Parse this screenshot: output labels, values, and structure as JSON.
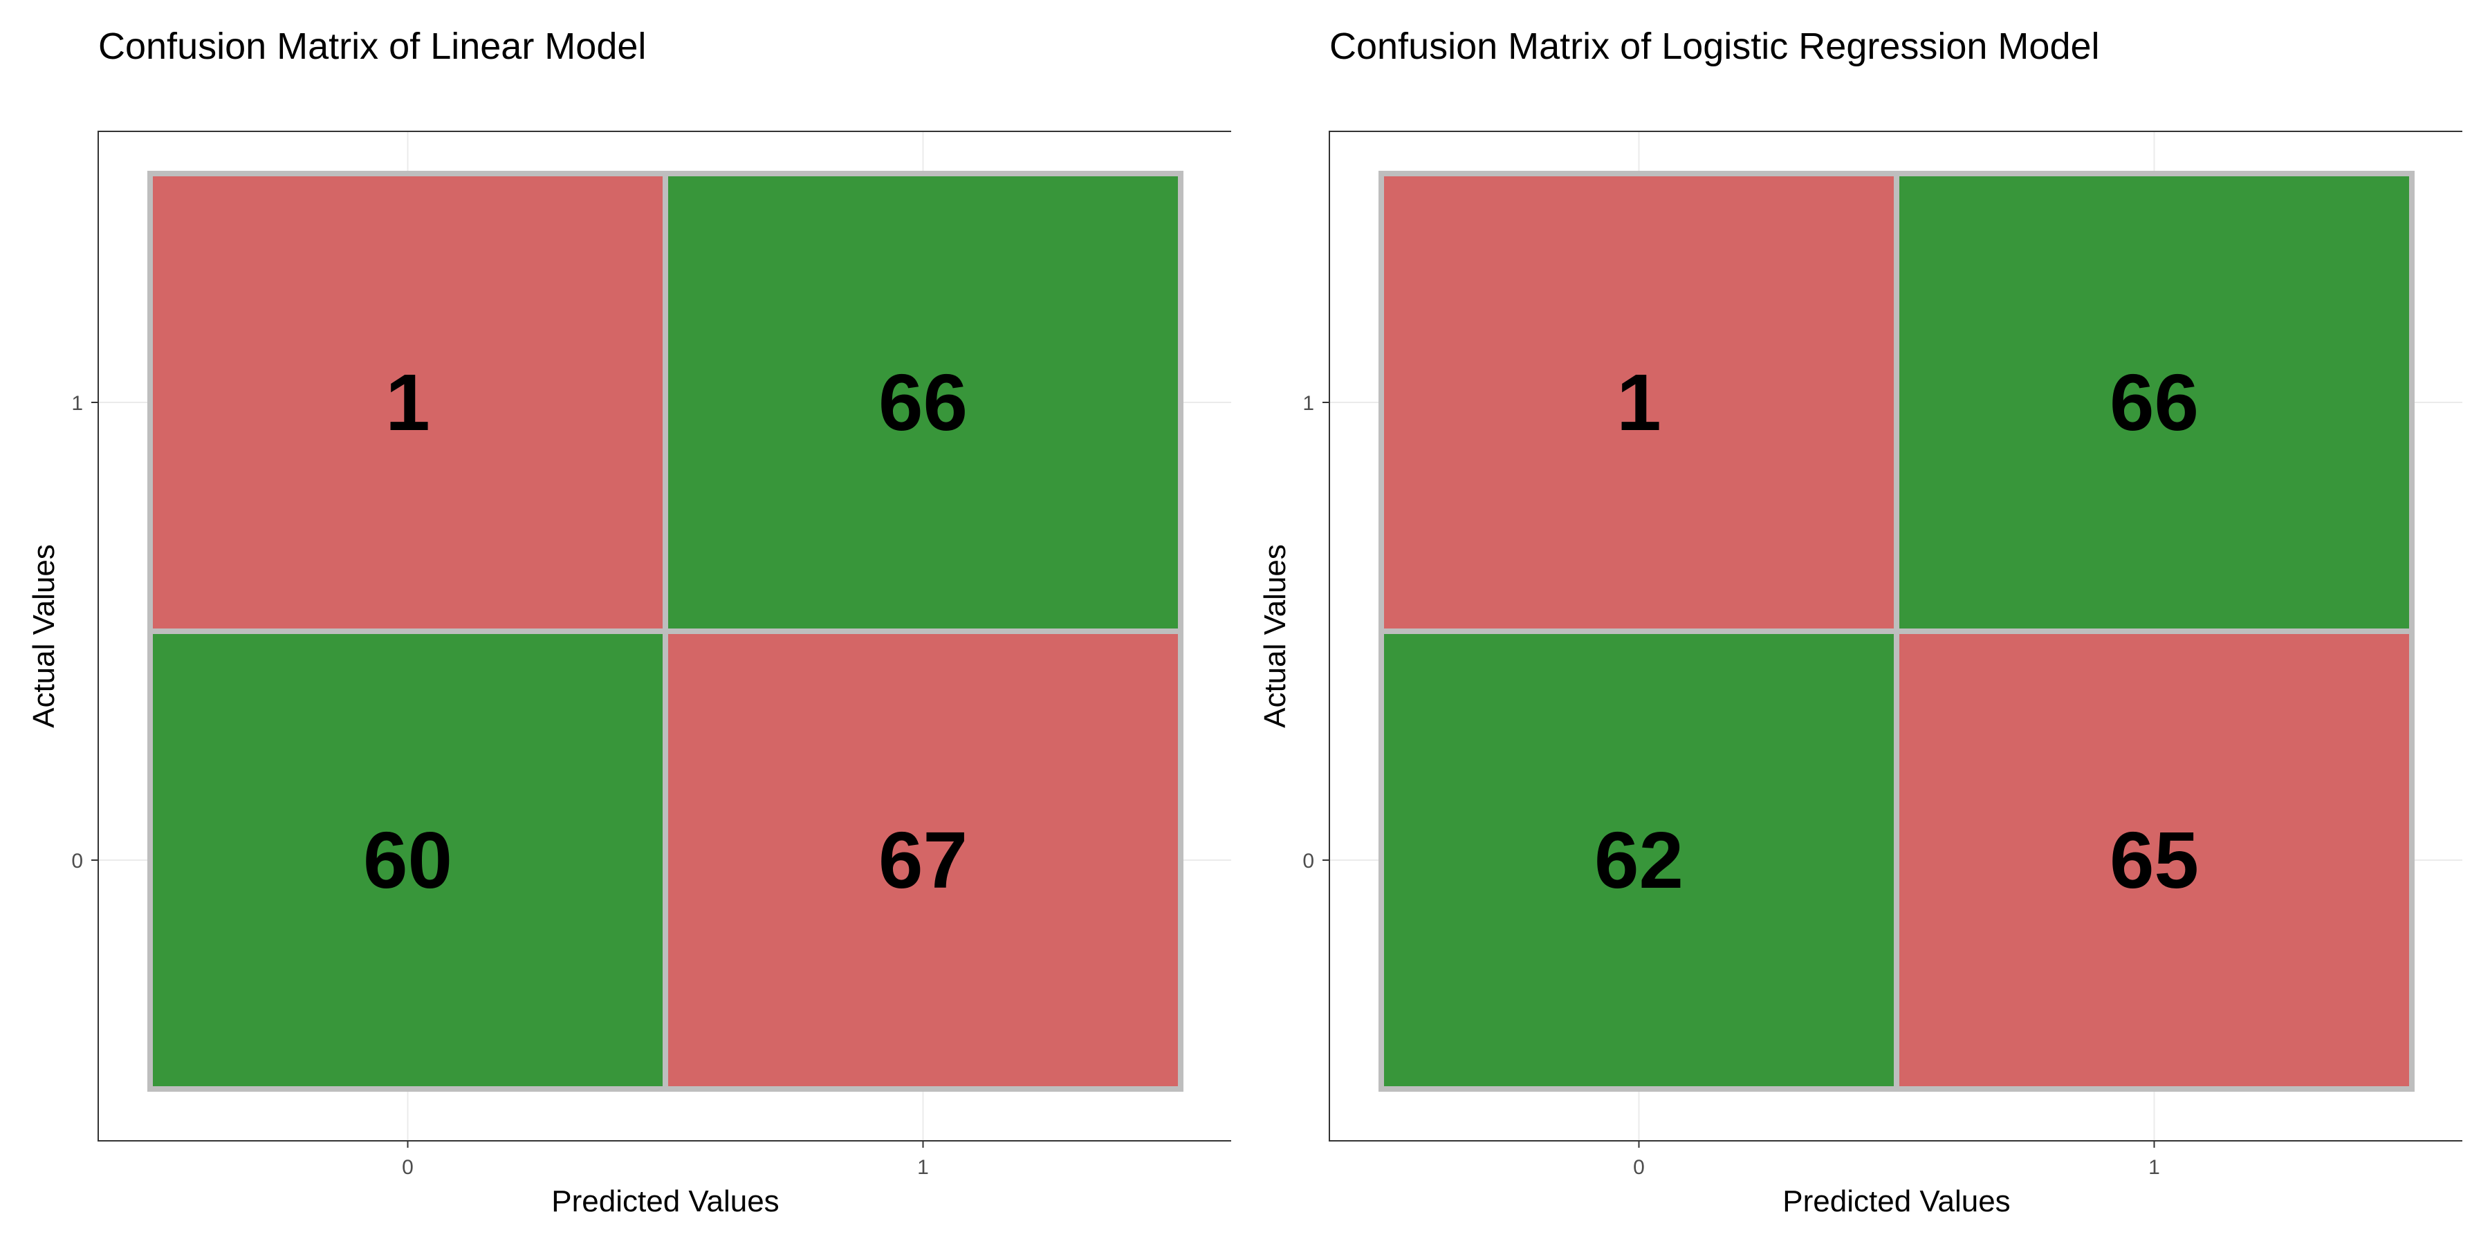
{
  "chart_data": [
    {
      "type": "heatmap",
      "title": "Confusion Matrix of Linear Model",
      "xlabel": "Predicted Values",
      "ylabel": "Actual Values",
      "x_categories": [
        "0",
        "1"
      ],
      "y_categories": [
        "0",
        "1"
      ],
      "cells": [
        {
          "predicted": "0",
          "actual": "1",
          "value": 1,
          "color": "#d46666"
        },
        {
          "predicted": "1",
          "actual": "1",
          "value": 66,
          "color": "#38963a"
        },
        {
          "predicted": "0",
          "actual": "0",
          "value": 60,
          "color": "#38963a"
        },
        {
          "predicted": "1",
          "actual": "0",
          "value": 67,
          "color": "#d46666"
        }
      ]
    },
    {
      "type": "heatmap",
      "title": "Confusion Matrix of Logistic Regression Model",
      "xlabel": "Predicted Values",
      "ylabel": "Actual Values",
      "x_categories": [
        "0",
        "1"
      ],
      "y_categories": [
        "0",
        "1"
      ],
      "cells": [
        {
          "predicted": "0",
          "actual": "1",
          "value": 1,
          "color": "#d46666"
        },
        {
          "predicted": "1",
          "actual": "1",
          "value": 66,
          "color": "#38963a"
        },
        {
          "predicted": "0",
          "actual": "0",
          "value": 62,
          "color": "#38963a"
        },
        {
          "predicted": "1",
          "actual": "0",
          "value": 65,
          "color": "#d46666"
        }
      ]
    }
  ]
}
